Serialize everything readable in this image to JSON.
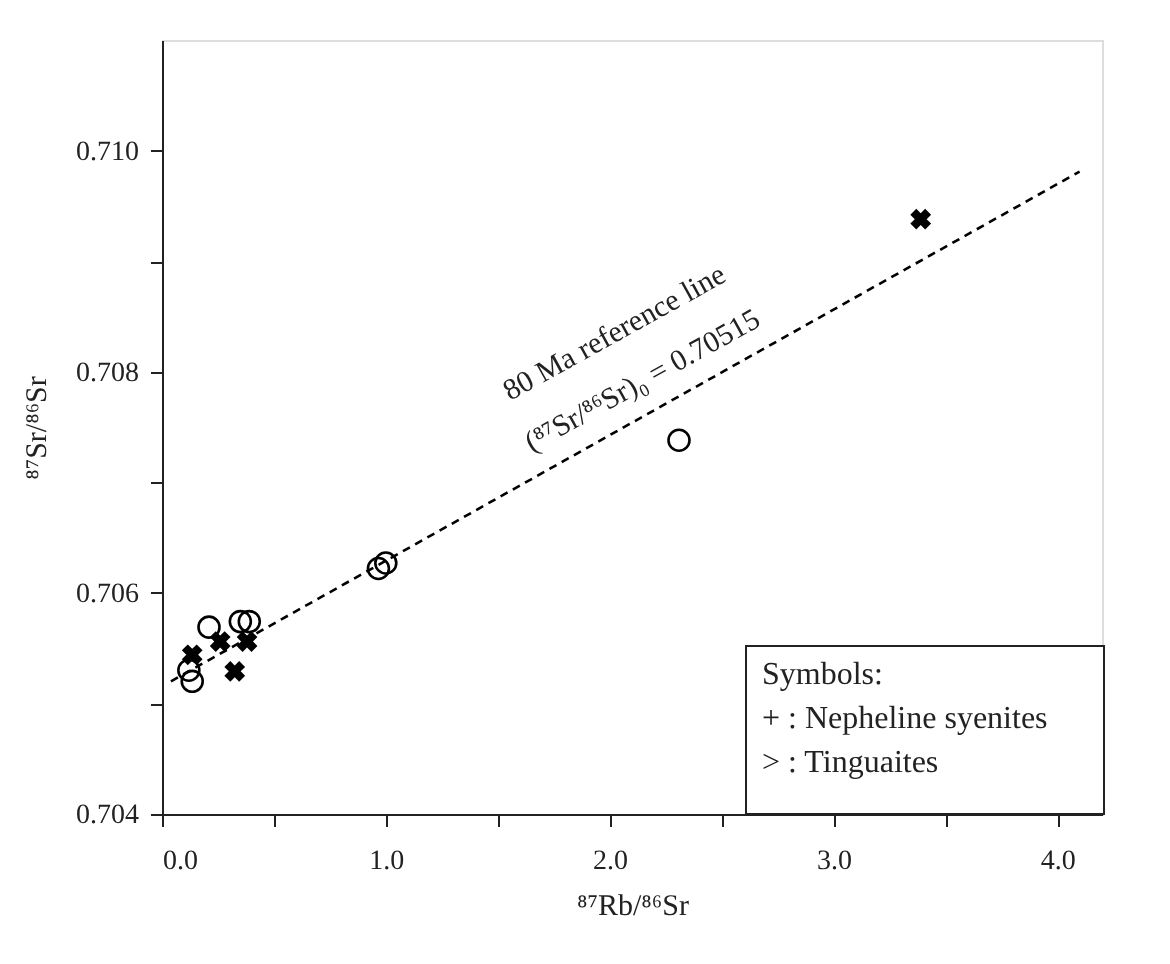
{
  "chart_data": {
    "type": "scatter",
    "xlabel": "⁸⁷Rb/⁸⁶Sr",
    "ylabel": "⁸⁷Sr/⁸⁶Sr",
    "xlim": [
      0,
      4.2
    ],
    "ylim": [
      0.704,
      0.711
    ],
    "xticks": [
      {
        "value": 0,
        "label": "0.0"
      },
      {
        "value": 0.5,
        "label": null
      },
      {
        "value": 1,
        "label": "1.0"
      },
      {
        "value": 1.5,
        "label": null
      },
      {
        "value": 2,
        "label": "2.0"
      },
      {
        "value": 2.5,
        "label": null
      },
      {
        "value": 3,
        "label": "3.0"
      },
      {
        "value": 3.5,
        "label": null
      },
      {
        "value": 4,
        "label": "4.0"
      }
    ],
    "yticks": [
      0.704,
      {
        "value": 0.705,
        "label": null
      },
      0.706,
      {
        "value": 0.707,
        "label": null
      },
      0.708,
      {
        "value": 0.709,
        "label": null
      },
      {
        "value": 0.71,
        "label": "0.710"
      }
    ],
    "grid": false,
    "series": [
      {
        "type": "scatter",
        "marker": "circle",
        "color": "#000000",
        "x": [
          0.135,
          0.12,
          0.21,
          0.35,
          0.39,
          0.967,
          1.0,
          2.31
        ],
        "values": [
          0.7052,
          0.7053,
          0.70569,
          0.70574,
          0.70574,
          0.70622,
          0.70627,
          0.70738
        ]
      },
      {
        "type": "scatter",
        "marker": "cross",
        "color": "#000000",
        "x": [
          0.135,
          0.26,
          0.325,
          0.38,
          3.39
        ],
        "values": [
          0.70544,
          0.70556,
          0.70529,
          0.70556,
          0.70938
        ]
      },
      {
        "type": "line",
        "line_style": "dashed",
        "color": "#000000",
        "x": [
          0.04,
          4.1
        ],
        "values": [
          0.7052,
          0.70981
        ]
      }
    ],
    "annotations": [
      "80 Ma reference line",
      "(⁸⁷Sr/⁸⁶Sr)₀ = 0.70515",
      "Symbols:",
      "+ : Nepheline syenites",
      "> : Tinguaites"
    ]
  }
}
